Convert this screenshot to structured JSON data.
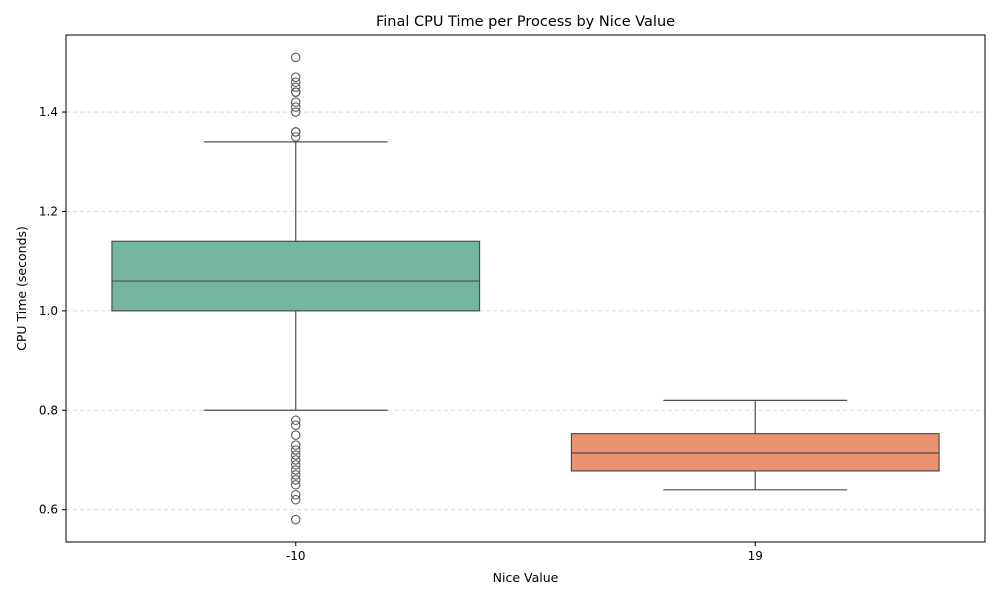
{
  "chart_data": {
    "type": "box",
    "title": "Final CPU Time per Process by Nice Value",
    "xlabel": "Nice Value",
    "ylabel": "CPU Time (seconds)",
    "ylim": [
      0.535,
      1.555
    ],
    "yticks": [
      "0.6",
      "0.8",
      "1.0",
      "1.2",
      "1.4"
    ],
    "grid": "y-dashed",
    "legend": "none",
    "categories": [
      "-10",
      "19"
    ],
    "series": [
      {
        "category": "-10",
        "color": "#73b6a0",
        "q1": 1.0,
        "median": 1.06,
        "q3": 1.14,
        "whisker_low": 0.8,
        "whisker_high": 1.34,
        "outliers": [
          1.35,
          1.36,
          1.36,
          1.4,
          1.41,
          1.42,
          1.44,
          1.44,
          1.45,
          1.46,
          1.47,
          1.51,
          0.78,
          0.77,
          0.75,
          0.73,
          0.72,
          0.71,
          0.7,
          0.69,
          0.68,
          0.67,
          0.66,
          0.65,
          0.63,
          0.62,
          0.58
        ]
      },
      {
        "category": "19",
        "color": "#ea9370",
        "q1": 0.678,
        "median": 0.714,
        "q3": 0.753,
        "whisker_low": 0.64,
        "whisker_high": 0.82,
        "outliers": []
      }
    ]
  }
}
